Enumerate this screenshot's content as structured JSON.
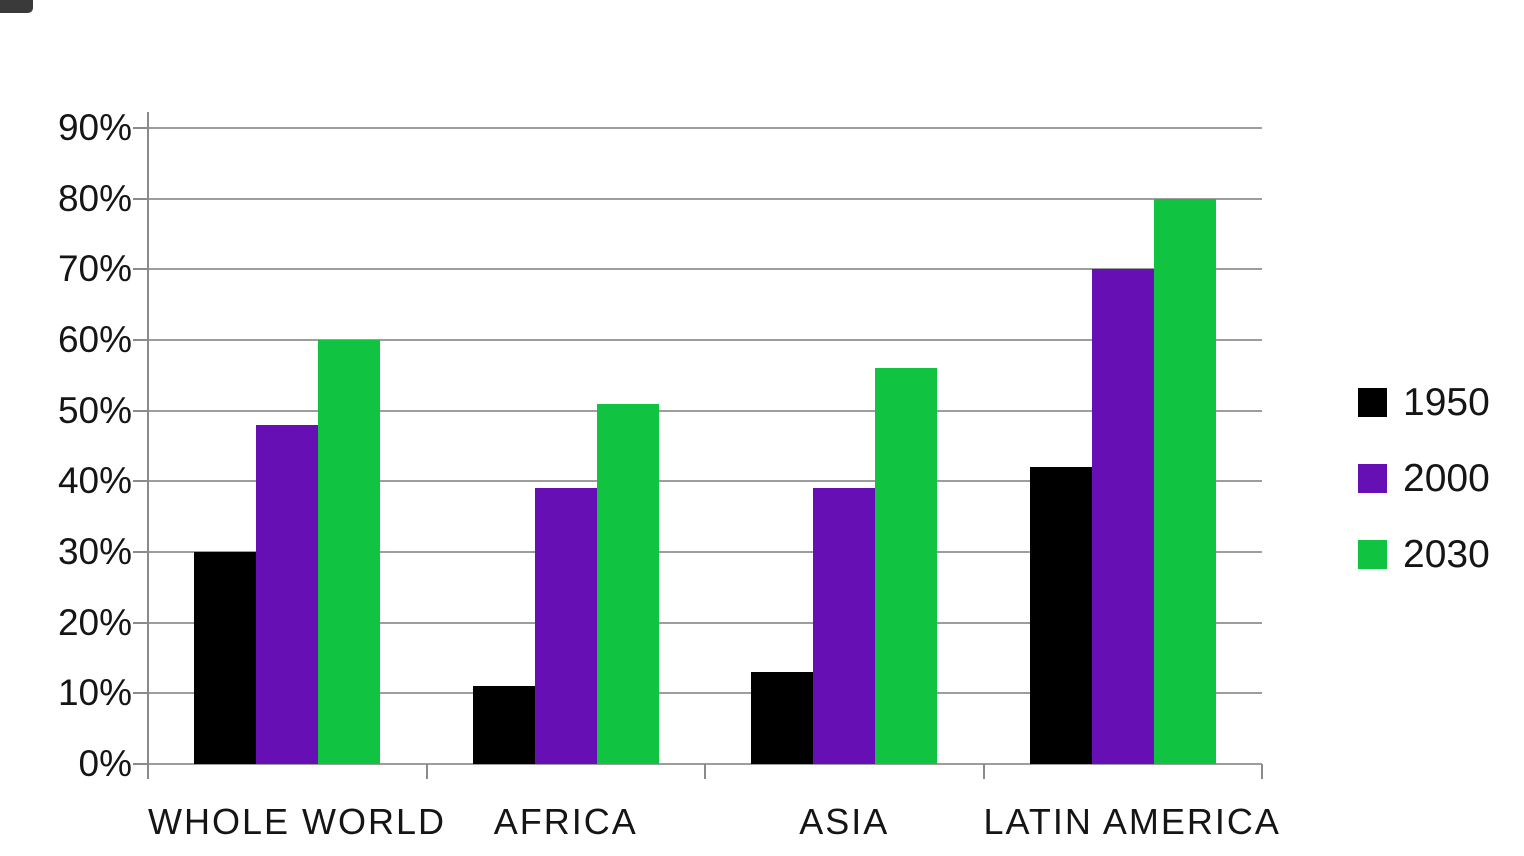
{
  "chart_data": {
    "type": "bar",
    "title": "",
    "categories": [
      "WHOLE WORLD",
      "AFRICA",
      "ASIA",
      "LATIN AMERICA"
    ],
    "series": [
      {
        "name": "1950",
        "color": "#000000",
        "values": [
          30,
          11,
          13,
          42
        ]
      },
      {
        "name": "2000",
        "color": "#650FB4",
        "values": [
          48,
          39,
          39,
          70
        ]
      },
      {
        "name": "2030",
        "color": "#10C341",
        "values": [
          60,
          51,
          56,
          80
        ]
      }
    ],
    "y_axis": {
      "tick_values": [
        0,
        10,
        20,
        30,
        40,
        50,
        60,
        70,
        80,
        90
      ],
      "tick_suffix": "%",
      "min": 0,
      "max": 90
    },
    "ylim": [
      0,
      90
    ],
    "xlabel": "",
    "ylabel": "",
    "grid": true,
    "legend_position": "right"
  }
}
